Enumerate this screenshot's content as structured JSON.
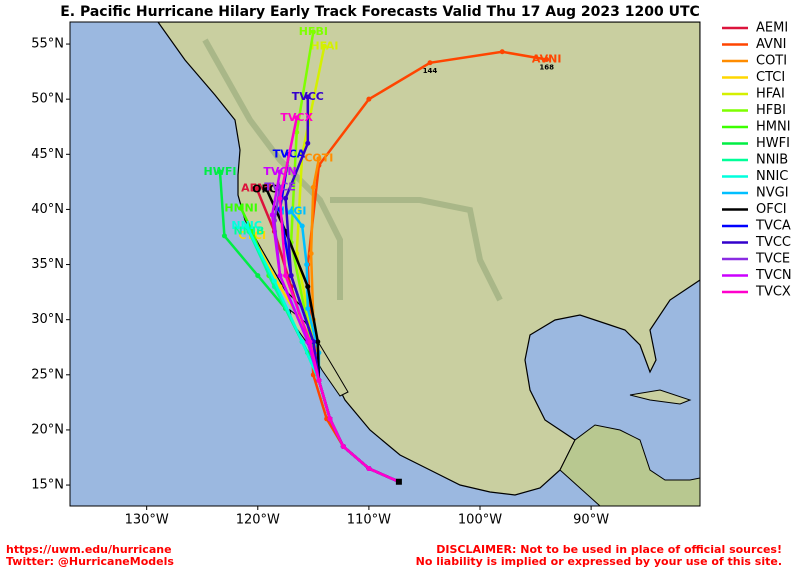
{
  "chart_data": {
    "type": "track_map",
    "title": "E. Pacific Hurricane Hilary Early Track Forecasts Valid Thu 17 Aug 2023 1200 UTC",
    "xlim": [
      -136.9,
      -80.2
    ],
    "ylim": [
      13.1,
      57
    ],
    "xticks": [
      {
        "value": -130,
        "label": "130°W"
      },
      {
        "value": -120,
        "label": "120°W"
      },
      {
        "value": -110,
        "label": "110°W"
      },
      {
        "value": -100,
        "label": "100°W"
      },
      {
        "value": -90,
        "label": "90°W"
      }
    ],
    "yticks": [
      {
        "value": 15,
        "label": "15°N"
      },
      {
        "value": 20,
        "label": "20°N"
      },
      {
        "value": 25,
        "label": "25°N"
      },
      {
        "value": 30,
        "label": "30°N"
      },
      {
        "value": 35,
        "label": "35°N"
      },
      {
        "value": 40,
        "label": "40°N"
      },
      {
        "value": 45,
        "label": "45°N"
      },
      {
        "value": 50,
        "label": "50°N"
      },
      {
        "value": 55,
        "label": "55°N"
      }
    ],
    "series": [
      {
        "name": "AEMI",
        "color": "#dc143c",
        "x": [
          -107.3,
          -110,
          -112.3,
          -113.5,
          -114.5,
          -115.5,
          -117,
          -118.5,
          -120.1
        ],
        "y": [
          15.3,
          16.5,
          18.5,
          21,
          24.5,
          28,
          33,
          38,
          41.9
        ]
      },
      {
        "name": "AVNI",
        "color": "#ff4500",
        "x": [
          -107.3,
          -110,
          -112.3,
          -113.8,
          -115,
          -115.5,
          -114.5,
          -110,
          -104.5,
          -98,
          -94
        ],
        "y": [
          15.3,
          16.5,
          18.5,
          21,
          25,
          35,
          44,
          50,
          53.3,
          54.3,
          53.6
        ],
        "hour_labels": [
          null,
          null,
          null,
          null,
          null,
          null,
          null,
          null,
          144,
          null,
          168
        ]
      },
      {
        "name": "COTI",
        "color": "#ff8c00",
        "x": [
          -107.3,
          -110,
          -112.3,
          -113.5,
          -114.5,
          -115,
          -115.2,
          -115,
          -114.5
        ],
        "y": [
          15.3,
          16.5,
          18.5,
          21,
          24.5,
          30,
          36,
          42,
          44.6
        ]
      },
      {
        "name": "CTCI",
        "color": "#ffd700",
        "x": [
          -107.3,
          -110,
          -112.3,
          -113.5,
          -114.5,
          -115,
          -118,
          -120.5
        ],
        "y": [
          15.3,
          16.5,
          18.5,
          21,
          24.5,
          28,
          33,
          37.6
        ]
      },
      {
        "name": "HFAI",
        "color": "#d4f000",
        "x": [
          -107.3,
          -110,
          -112.3,
          -113.5,
          -114.5,
          -115,
          -116.5,
          -116,
          -114
        ],
        "y": [
          15.3,
          16.5,
          18.5,
          21,
          24.5,
          28,
          36,
          45,
          54.8
        ]
      },
      {
        "name": "HFBI",
        "color": "#7fff00",
        "x": [
          -107.3,
          -110,
          -112.3,
          -113.5,
          -114.5,
          -115.2,
          -117,
          -116.5,
          -115
        ],
        "y": [
          15.3,
          16.5,
          18.5,
          21,
          24.5,
          28,
          37,
          47,
          56.1
        ]
      },
      {
        "name": "HMNI",
        "color": "#3cff00",
        "x": [
          -107.3,
          -110,
          -112.3,
          -113.5,
          -114.5,
          -116,
          -119,
          -120.5,
          -121.5
        ],
        "y": [
          15.3,
          16.5,
          18.5,
          21,
          24.5,
          28,
          34,
          38,
          40.1
        ]
      },
      {
        "name": "HWFI",
        "color": "#00ee44",
        "x": [
          -107.3,
          -110,
          -112.3,
          -113.5,
          -114.5,
          -115.5,
          -117.5,
          -120,
          -123,
          -123.4
        ],
        "y": [
          15.3,
          16.5,
          18.5,
          21,
          24.5,
          27,
          31,
          34,
          37.6,
          43.4
        ]
      },
      {
        "name": "NNIB",
        "color": "#00ff99",
        "x": [
          -107.3,
          -110,
          -112.3,
          -113.5,
          -114.5,
          -116,
          -118.5,
          -120.8
        ],
        "y": [
          15.3,
          16.5,
          18.5,
          21,
          24.5,
          28,
          33,
          38
        ]
      },
      {
        "name": "NNIC",
        "color": "#00ffdd",
        "x": [
          -107.3,
          -110,
          -112.3,
          -113.5,
          -114.5,
          -116,
          -118.5,
          -121
        ],
        "y": [
          15.3,
          16.5,
          18.5,
          21,
          24.5,
          28,
          33.5,
          38.5
        ]
      },
      {
        "name": "NVGI",
        "color": "#00bfff",
        "x": [
          -107.3,
          -110,
          -112.3,
          -113.5,
          -114.5,
          -114.5,
          -115.5,
          -115.6,
          -116,
          -117
        ],
        "y": [
          15.3,
          16.5,
          18.5,
          21,
          24.5,
          27,
          31,
          35,
          38.5,
          39.8
        ]
      },
      {
        "name": "OFCI",
        "color": "#000000",
        "x": [
          -107.3,
          -110,
          -112.3,
          -113.5,
          -114.5,
          -114.6,
          -115.5,
          -117.5,
          -119.2
        ],
        "y": [
          15.3,
          16.5,
          18.5,
          21,
          24.5,
          28,
          33,
          38,
          41.8
        ]
      },
      {
        "name": "TVCA",
        "color": "#0000ff",
        "x": [
          -107.3,
          -110,
          -112.3,
          -113.5,
          -114.5,
          -115,
          -117,
          -118,
          -117.2
        ],
        "y": [
          15.3,
          16.5,
          18.5,
          21,
          24.5,
          28,
          34,
          40,
          45
        ]
      },
      {
        "name": "TVCC",
        "color": "#3300cc",
        "x": [
          -107.3,
          -110,
          -112.3,
          -113.5,
          -114.5,
          -115,
          -117,
          -117.5,
          -115.5,
          -115.5
        ],
        "y": [
          15.3,
          16.5,
          18.5,
          21,
          24.5,
          28,
          34,
          41,
          46,
          50.2
        ]
      },
      {
        "name": "TVCE",
        "color": "#8a2be2",
        "x": [
          -107.3,
          -110,
          -112.3,
          -113.5,
          -114.5,
          -115.5,
          -118,
          -118.5,
          -118
        ],
        "y": [
          15.3,
          16.5,
          18.5,
          21,
          24.5,
          28,
          34,
          39,
          42
        ]
      },
      {
        "name": "TVCN",
        "color": "#cc00ff",
        "x": [
          -107.3,
          -110,
          -112.3,
          -113.5,
          -114.5,
          -115.5,
          -118,
          -118.7,
          -118
        ],
        "y": [
          15.3,
          16.5,
          18.5,
          21,
          24.5,
          28,
          34,
          39.5,
          43.4
        ]
      },
      {
        "name": "TVCX",
        "color": "#ff00cc",
        "x": [
          -107.3,
          -110,
          -112.3,
          -113.5,
          -114.5,
          -115.3,
          -117.5,
          -118,
          -116.5
        ],
        "y": [
          15.3,
          16.5,
          18.5,
          21,
          24.5,
          28,
          34,
          41,
          48.3
        ]
      }
    ]
  },
  "footer": {
    "left": [
      "https://uwm.edu/hurricane",
      "Twitter: @HurricaneModels"
    ],
    "right": [
      "DISCLAIMER: Not to be used in place of official sources!",
      "No liability is implied or expressed by your use of this site."
    ]
  }
}
